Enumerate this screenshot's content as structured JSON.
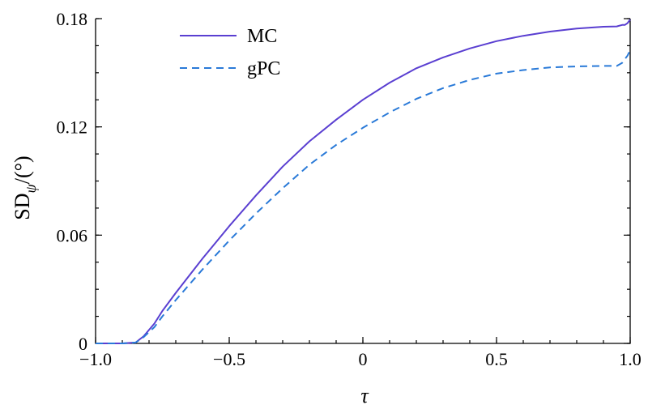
{
  "chart_data": {
    "type": "line",
    "xlabel": "τ",
    "ylabel": "SD",
    "ylabel_sub": "ψ",
    "ylabel_unit": "/(°)",
    "xlim": [
      -1.0,
      1.0
    ],
    "ylim": [
      0,
      0.18
    ],
    "xticks": [
      -1.0,
      -0.5,
      0,
      0.5,
      1.0
    ],
    "xtick_labels": [
      "−1.0",
      "−0.5",
      "0",
      "0.5",
      "1.0"
    ],
    "yticks": [
      0,
      0.06,
      0.12,
      0.18
    ],
    "ytick_labels": [
      "0",
      "0.06",
      "0.12",
      "0.18"
    ],
    "grid": false,
    "legend_position": "top-left",
    "series": [
      {
        "name": "MC",
        "color": "#5a3fd1",
        "dash": "solid",
        "x": [
          -1.0,
          -0.9,
          -0.85,
          -0.82,
          -0.78,
          -0.75,
          -0.7,
          -0.6,
          -0.5,
          -0.4,
          -0.3,
          -0.2,
          -0.1,
          0.0,
          0.1,
          0.2,
          0.3,
          0.4,
          0.5,
          0.6,
          0.7,
          0.8,
          0.9,
          0.95,
          0.97,
          0.98,
          0.99,
          1.0
        ],
        "y": [
          0,
          0,
          0.0005,
          0.004,
          0.011,
          0.018,
          0.028,
          0.047,
          0.065,
          0.082,
          0.098,
          0.112,
          0.124,
          0.135,
          0.1445,
          0.1525,
          0.1585,
          0.1635,
          0.1675,
          0.1705,
          0.1728,
          0.1745,
          0.1755,
          0.1757,
          0.1765,
          0.1765,
          0.1775,
          0.1795
        ]
      },
      {
        "name": "gPC",
        "color": "#2a7ad8",
        "dash": "dashed",
        "x": [
          -1.0,
          -0.9,
          -0.85,
          -0.82,
          -0.78,
          -0.75,
          -0.7,
          -0.6,
          -0.5,
          -0.4,
          -0.3,
          -0.2,
          -0.1,
          0.0,
          0.1,
          0.2,
          0.3,
          0.4,
          0.5,
          0.6,
          0.7,
          0.8,
          0.9,
          0.95,
          0.97,
          0.98,
          0.99,
          1.0
        ],
        "y": [
          0,
          0,
          0.0005,
          0.0035,
          0.009,
          0.015,
          0.024,
          0.041,
          0.057,
          0.072,
          0.086,
          0.099,
          0.11,
          0.1195,
          0.128,
          0.1355,
          0.1415,
          0.146,
          0.1495,
          0.1515,
          0.153,
          0.1535,
          0.1538,
          0.1538,
          0.1555,
          0.1575,
          0.1595,
          0.1625
        ]
      }
    ]
  }
}
